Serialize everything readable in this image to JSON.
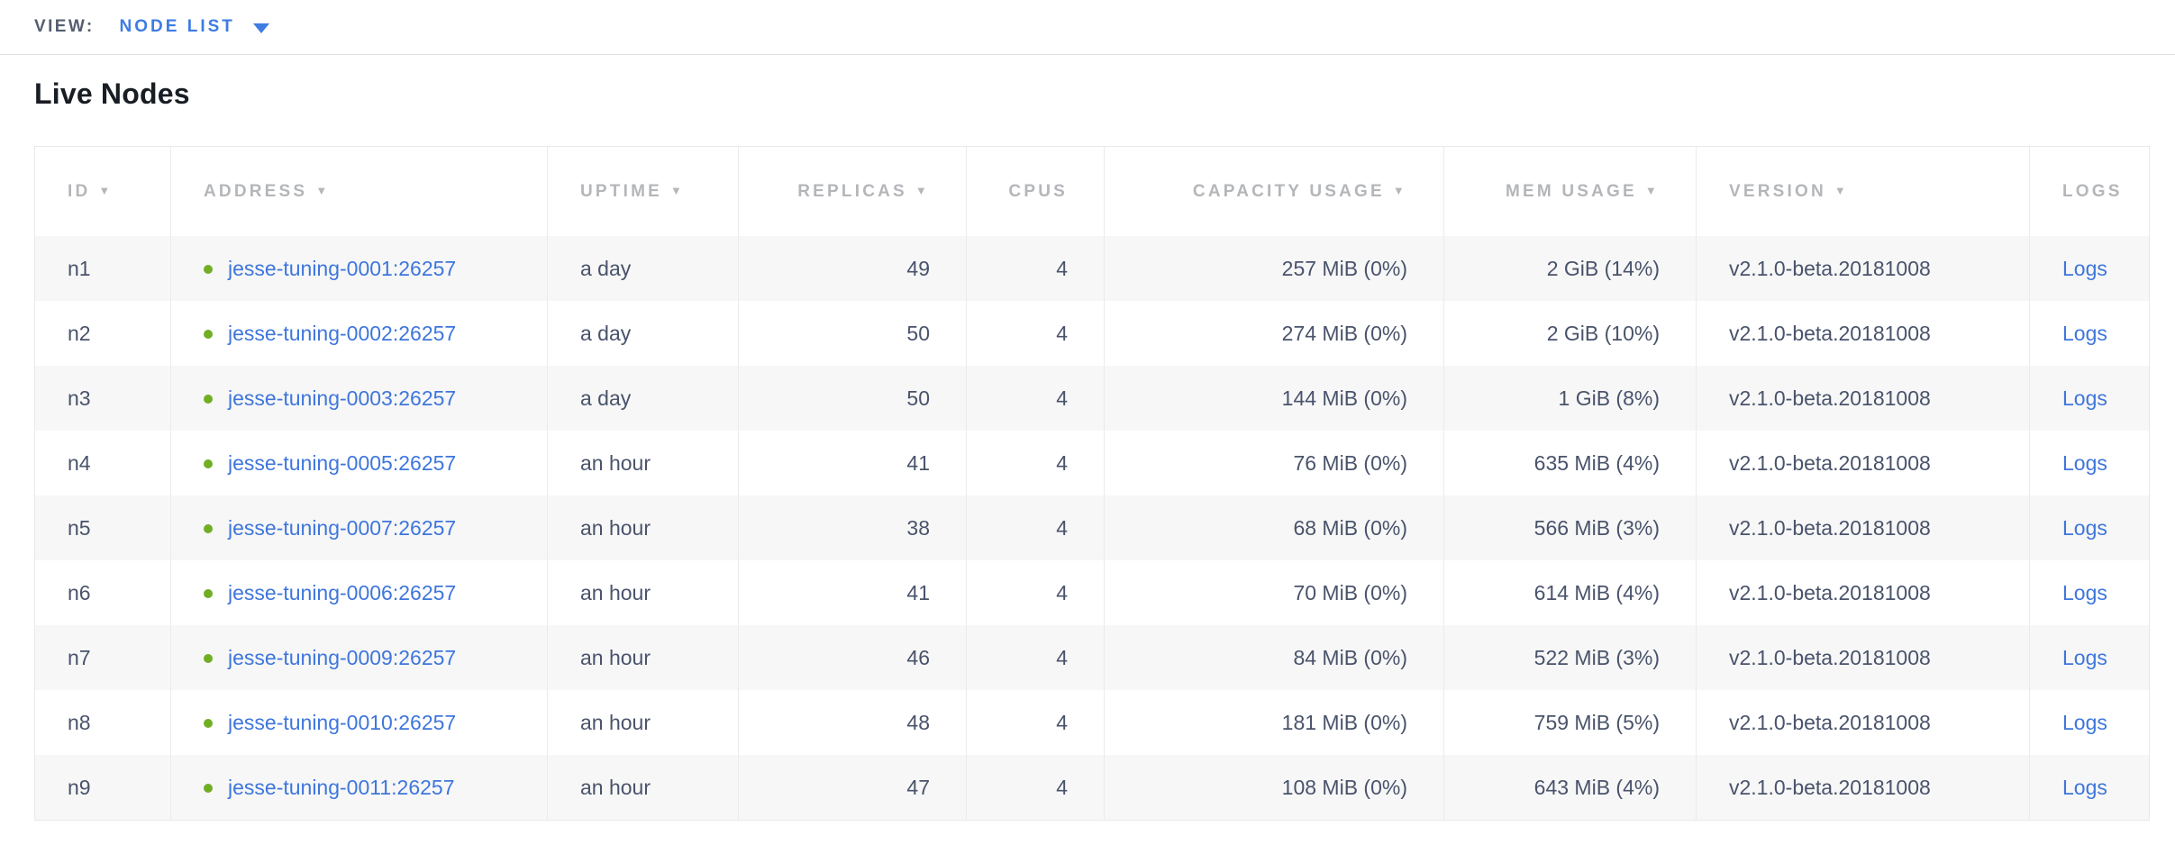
{
  "view_bar": {
    "label": "VIEW:",
    "selected_view": "NODE LIST"
  },
  "page": {
    "title": "Live Nodes"
  },
  "icons": {
    "dropdown_arrow": "triangle-down",
    "sort_arrow_glyph": "▼",
    "node_status_dot_glyph": "●"
  },
  "colors": {
    "accent_blue": "#3e7ce2",
    "link_blue": "#3e76dc",
    "status_green_live": "#71ae25",
    "header_text_gray": "#b4b6b9",
    "body_text_slate": "#49536b",
    "alt_row_bg": "#f7f7f7",
    "divider_gray": "#e9e9e9"
  },
  "table": {
    "columns": [
      {
        "key": "id",
        "label": "ID",
        "sortable": true,
        "align": "left",
        "type": "text"
      },
      {
        "key": "address",
        "label": "ADDRESS",
        "sortable": true,
        "align": "left",
        "type": "link_with_dot"
      },
      {
        "key": "uptime",
        "label": "UPTIME",
        "sortable": true,
        "align": "left",
        "type": "text"
      },
      {
        "key": "replicas",
        "label": "REPLICAS",
        "sortable": true,
        "align": "right",
        "type": "text"
      },
      {
        "key": "cpus",
        "label": "CPUS",
        "sortable": false,
        "align": "right",
        "type": "text"
      },
      {
        "key": "capacity_usage",
        "label": "CAPACITY USAGE",
        "sortable": true,
        "align": "right",
        "type": "text"
      },
      {
        "key": "mem_usage",
        "label": "MEM USAGE",
        "sortable": true,
        "align": "right",
        "type": "text"
      },
      {
        "key": "version",
        "label": "VERSION",
        "sortable": true,
        "align": "left",
        "type": "text"
      },
      {
        "key": "logs",
        "label": "LOGS",
        "sortable": false,
        "align": "left",
        "type": "link"
      }
    ],
    "rows": [
      {
        "id": "n1",
        "address": "jesse-tuning-0001:26257",
        "status": "live",
        "uptime": "a day",
        "replicas": "49",
        "cpus": "4",
        "capacity_usage": "257 MiB (0%)",
        "mem_usage": "2 GiB (14%)",
        "version": "v2.1.0-beta.20181008",
        "logs": "Logs"
      },
      {
        "id": "n2",
        "address": "jesse-tuning-0002:26257",
        "status": "live",
        "uptime": "a day",
        "replicas": "50",
        "cpus": "4",
        "capacity_usage": "274 MiB (0%)",
        "mem_usage": "2 GiB (10%)",
        "version": "v2.1.0-beta.20181008",
        "logs": "Logs"
      },
      {
        "id": "n3",
        "address": "jesse-tuning-0003:26257",
        "status": "live",
        "uptime": "a day",
        "replicas": "50",
        "cpus": "4",
        "capacity_usage": "144 MiB (0%)",
        "mem_usage": "1 GiB (8%)",
        "version": "v2.1.0-beta.20181008",
        "logs": "Logs"
      },
      {
        "id": "n4",
        "address": "jesse-tuning-0005:26257",
        "status": "live",
        "uptime": "an hour",
        "replicas": "41",
        "cpus": "4",
        "capacity_usage": "76 MiB (0%)",
        "mem_usage": "635 MiB (4%)",
        "version": "v2.1.0-beta.20181008",
        "logs": "Logs"
      },
      {
        "id": "n5",
        "address": "jesse-tuning-0007:26257",
        "status": "live",
        "uptime": "an hour",
        "replicas": "38",
        "cpus": "4",
        "capacity_usage": "68 MiB (0%)",
        "mem_usage": "566 MiB (3%)",
        "version": "v2.1.0-beta.20181008",
        "logs": "Logs"
      },
      {
        "id": "n6",
        "address": "jesse-tuning-0006:26257",
        "status": "live",
        "uptime": "an hour",
        "replicas": "41",
        "cpus": "4",
        "capacity_usage": "70 MiB (0%)",
        "mem_usage": "614 MiB (4%)",
        "version": "v2.1.0-beta.20181008",
        "logs": "Logs"
      },
      {
        "id": "n7",
        "address": "jesse-tuning-0009:26257",
        "status": "live",
        "uptime": "an hour",
        "replicas": "46",
        "cpus": "4",
        "capacity_usage": "84 MiB (0%)",
        "mem_usage": "522 MiB (3%)",
        "version": "v2.1.0-beta.20181008",
        "logs": "Logs"
      },
      {
        "id": "n8",
        "address": "jesse-tuning-0010:26257",
        "status": "live",
        "uptime": "an hour",
        "replicas": "48",
        "cpus": "4",
        "capacity_usage": "181 MiB (0%)",
        "mem_usage": "759 MiB (5%)",
        "version": "v2.1.0-beta.20181008",
        "logs": "Logs"
      },
      {
        "id": "n9",
        "address": "jesse-tuning-0011:26257",
        "status": "live",
        "uptime": "an hour",
        "replicas": "47",
        "cpus": "4",
        "capacity_usage": "108 MiB (0%)",
        "mem_usage": "643 MiB (4%)",
        "version": "v2.1.0-beta.20181008",
        "logs": "Logs"
      }
    ]
  }
}
